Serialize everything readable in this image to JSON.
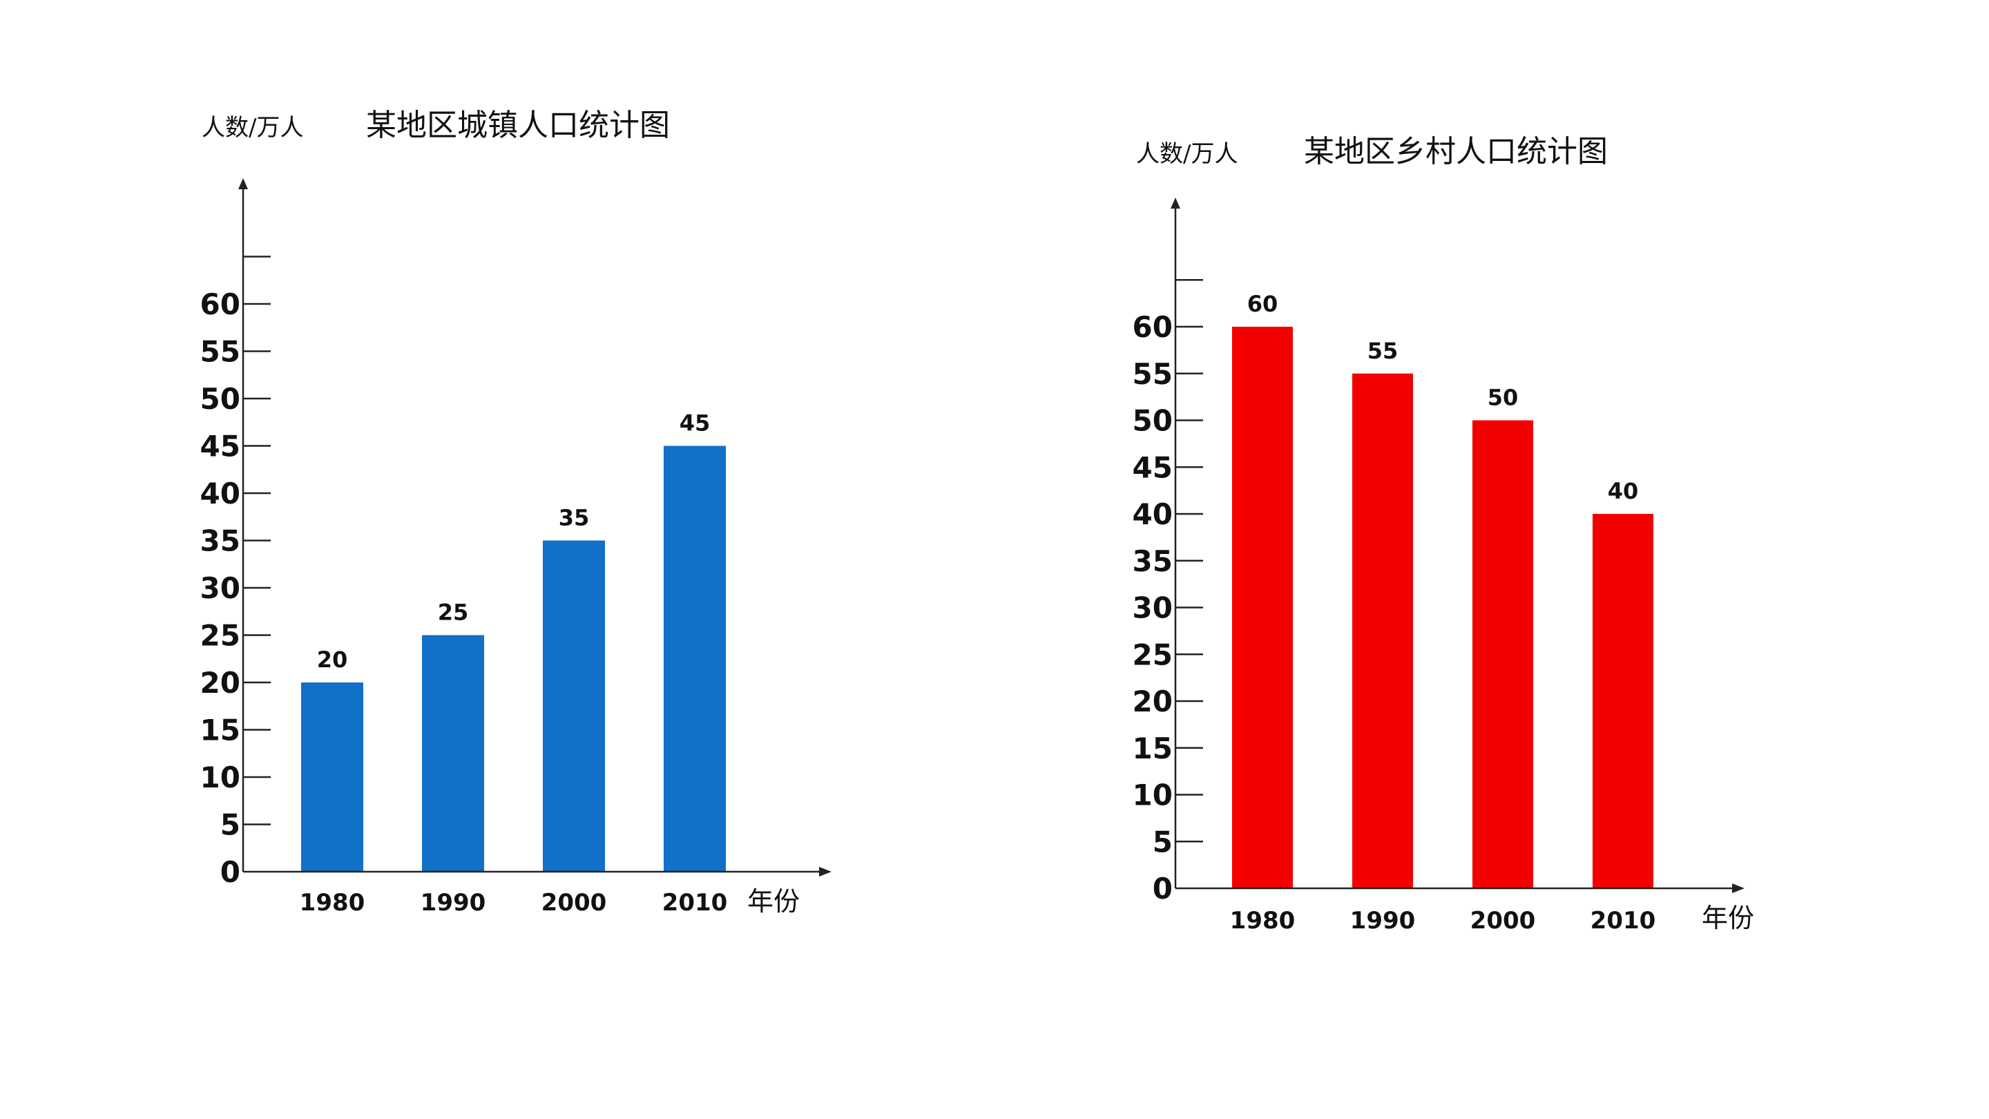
{
  "chart_data": [
    {
      "type": "bar",
      "title": "某地区城镇人口统计图",
      "ylabel": "人数/万人",
      "xlabel": "年份",
      "categories": [
        "1980",
        "1990",
        "2000",
        "2010"
      ],
      "values": [
        20,
        25,
        35,
        45
      ],
      "data_labels": [
        "20",
        "25",
        "35",
        "45"
      ],
      "y_ticks": [
        "0",
        "5",
        "10",
        "15",
        "20",
        "25",
        "30",
        "35",
        "40",
        "45",
        "50",
        "55",
        "60"
      ],
      "ylim": [
        0,
        65
      ],
      "bar_color": "#1170c8",
      "grid": false,
      "legend": "none"
    },
    {
      "type": "bar",
      "title": "某地区乡村人口统计图",
      "ylabel": "人数/万人",
      "xlabel": "年份",
      "categories": [
        "1980",
        "1990",
        "2000",
        "2010"
      ],
      "values": [
        60,
        55,
        50,
        40
      ],
      "data_labels": [
        "60",
        "55",
        "50",
        "40"
      ],
      "y_ticks": [
        "0",
        "5",
        "10",
        "15",
        "20",
        "25",
        "30",
        "35",
        "40",
        "45",
        "50",
        "55",
        "60"
      ],
      "ylim": [
        0,
        65
      ],
      "bar_color": "#f50000",
      "grid": false,
      "legend": "none"
    }
  ]
}
